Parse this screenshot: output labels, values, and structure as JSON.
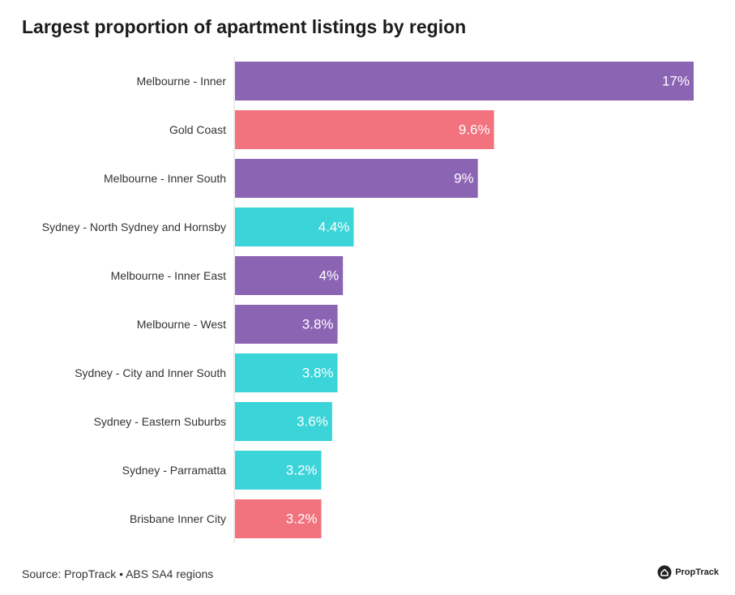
{
  "title": "Largest proportion of apartment listings by region",
  "source": "Source: PropTrack • ABS SA4 regions",
  "brand": "PropTrack",
  "colors": {
    "melbourne": "#8c64b4",
    "queensland": "#f2727e",
    "sydney": "#3bd4d8",
    "axis": "#d9d9d9",
    "label": "#333333",
    "value_label": "#ffffff"
  },
  "chart_data": {
    "type": "bar",
    "orientation": "horizontal",
    "title": "Largest proportion of apartment listings by region",
    "xlabel": "",
    "ylabel": "",
    "unit": "%",
    "xlim": [
      0,
      17
    ],
    "grid": false,
    "categories": [
      "Melbourne - Inner",
      "Gold Coast",
      "Melbourne - Inner South",
      "Sydney - North Sydney and Hornsby",
      "Melbourne - Inner East",
      "Melbourne - West",
      "Sydney - City and Inner South",
      "Sydney - Eastern Suburbs",
      "Sydney - Parramatta",
      "Brisbane Inner City"
    ],
    "values": [
      17,
      9.6,
      9,
      4.4,
      4,
      3.8,
      3.8,
      3.6,
      3.2,
      3.2
    ],
    "labels": [
      "17%",
      "9.6%",
      "9%",
      "4.4%",
      "4%",
      "3.8%",
      "3.8%",
      "3.6%",
      "3.2%",
      "3.2%"
    ],
    "groups": [
      "melbourne",
      "queensland",
      "melbourne",
      "sydney",
      "melbourne",
      "melbourne",
      "sydney",
      "sydney",
      "sydney",
      "queensland"
    ]
  }
}
